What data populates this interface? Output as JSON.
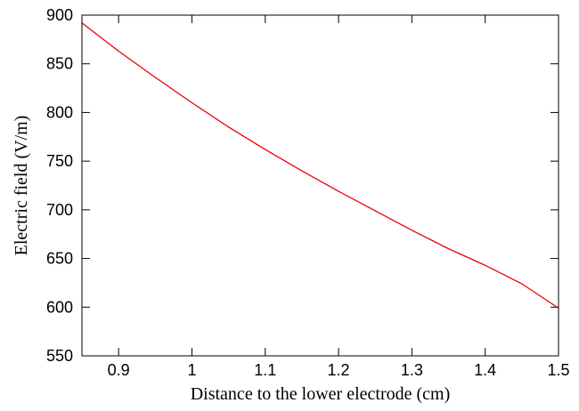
{
  "chart_data": {
    "type": "line",
    "title": "",
    "xlabel": "Distance to the lower electrode (cm)",
    "ylabel": "Electric field (V/m)",
    "xlim": [
      0.85,
      1.5
    ],
    "ylim": [
      550,
      900
    ],
    "xticks": [
      0.9,
      1,
      1.1,
      1.2,
      1.3,
      1.4,
      1.5
    ],
    "xtick_labels": [
      "0.9",
      "1",
      "1.1",
      "1.2",
      "1.3",
      "1.4",
      "1.5"
    ],
    "yticks": [
      550,
      600,
      650,
      700,
      750,
      800,
      850,
      900
    ],
    "ytick_labels": [
      "550",
      "600",
      "650",
      "700",
      "750",
      "800",
      "850",
      "900"
    ],
    "grid": false,
    "legend": "none",
    "series": [
      {
        "color": "#e8000b",
        "x": [
          0.85,
          0.9,
          0.95,
          1.0,
          1.05,
          1.1,
          1.15,
          1.2,
          1.25,
          1.3,
          1.35,
          1.4,
          1.45,
          1.5
        ],
        "y": [
          892,
          863,
          836,
          810,
          785,
          762,
          740,
          719,
          699,
          679,
          660,
          643,
          624,
          599
        ]
      }
    ]
  }
}
